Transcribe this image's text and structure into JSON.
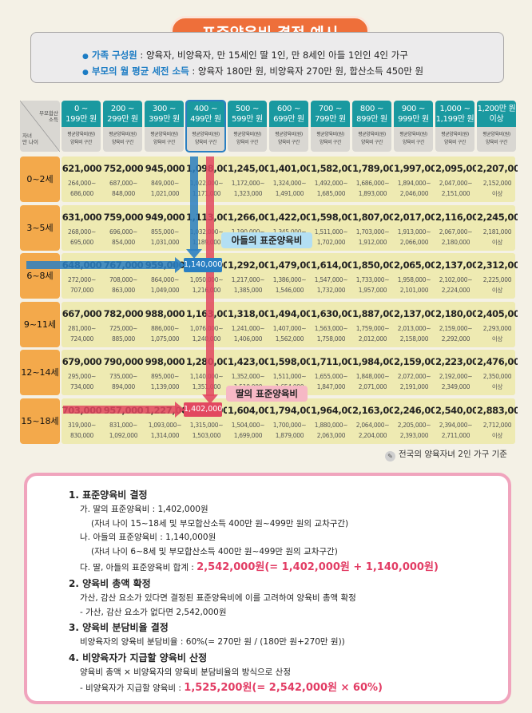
{
  "title": "표준양육비 결정 예시",
  "info": {
    "family_label": "가족 구성원",
    "family_value": ": 양육자, 비양육자, 만 15세인 딸 1인, 만 8세인 아들 1인인 4인 가구",
    "income_label": "부모의 월 평균 세전 소득",
    "income_value": ": 양육자 180만 원, 비양육자 270만 원, 합산소득 450만 원"
  },
  "corner": {
    "top": "부모합산\n소득",
    "bottom": "자녀\n만 나이"
  },
  "columns": [
    {
      "top": "0 ~\n199만 원",
      "sub": "평균양육비(원)\n양육비 구간"
    },
    {
      "top": "200 ~\n299만 원",
      "sub": "평균양육비(원)\n양육비 구간"
    },
    {
      "top": "300 ~\n399만 원",
      "sub": "평균양육비(원)\n양육비 구간"
    },
    {
      "top": "400 ~\n499만 원",
      "sub": "평균양육비(원)\n양육비 구간"
    },
    {
      "top": "500 ~\n599만 원",
      "sub": "평균양육비(원)\n양육비 구간"
    },
    {
      "top": "600 ~\n699만 원",
      "sub": "평균양육비(원)\n양육비 구간"
    },
    {
      "top": "700 ~\n799만 원",
      "sub": "평균양육비(원)\n양육비 구간"
    },
    {
      "top": "800 ~\n899만 원",
      "sub": "평균양육비(원)\n양육비 구간"
    },
    {
      "top": "900 ~\n999만 원",
      "sub": "평균양육비(원)\n양육비 구간"
    },
    {
      "top": "1,000 ~\n1,199만 원",
      "sub": "평균양육비(원)\n양육비 구간"
    },
    {
      "top": "1,200만 원\n이상",
      "sub": "평균양육비(원)\n양육비 구간"
    }
  ],
  "rows": [
    {
      "age": "0~2세",
      "cells": [
        [
          "621,000",
          "264,000~",
          "686,000"
        ],
        [
          "752,000",
          "687,000~",
          "848,000"
        ],
        [
          "945,000",
          "849,000~",
          "1,021,000"
        ],
        [
          "1,098,000",
          "1,022,000~",
          "1,171,000"
        ],
        [
          "1,245,000",
          "1,172,000~",
          "1,323,000"
        ],
        [
          "1,401,000",
          "1,324,000~",
          "1,491,000"
        ],
        [
          "1,582,000",
          "1,492,000~",
          "1,685,000"
        ],
        [
          "1,789,000",
          "1,686,000~",
          "1,893,000"
        ],
        [
          "1,997,000",
          "1,894,000~",
          "2,046,000"
        ],
        [
          "2,095,000",
          "2,047,000~",
          "2,151,000"
        ],
        [
          "2,207,000",
          "2,152,000",
          "이상"
        ]
      ]
    },
    {
      "age": "3~5세",
      "cells": [
        [
          "631,000",
          "268,000~",
          "695,000"
        ],
        [
          "759,000",
          "696,000~",
          "854,000"
        ],
        [
          "949,000",
          "855,000~",
          "1,031,000"
        ],
        [
          "1,113,000",
          "1,032,000~",
          "1,189,000"
        ],
        [
          "1,266,000",
          "1,190,000~",
          "1,344,000"
        ],
        [
          "1,422,000",
          "1,345,000~",
          "1,510,000"
        ],
        [
          "1,598,000",
          "1,511,000~",
          "1,702,000"
        ],
        [
          "1,807,000",
          "1,703,000~",
          "1,912,000"
        ],
        [
          "2,017,000",
          "1,913,000~",
          "2,066,000"
        ],
        [
          "2,116,000",
          "2,067,000~",
          "2,180,000"
        ],
        [
          "2,245,000",
          "2,181,000",
          "이상"
        ]
      ]
    },
    {
      "age": "6~8세",
      "cells": [
        [
          "648,000",
          "272,000~",
          "707,000"
        ],
        [
          "767,000",
          "708,000~",
          "863,000"
        ],
        [
          "959,000",
          "864,000~",
          "1,049,000"
        ],
        [
          "1,140,000",
          "1,050,000~",
          "1,216,000"
        ],
        [
          "1,292,000",
          "1,217,000~",
          "1,385,000"
        ],
        [
          "1,479,000",
          "1,386,000~",
          "1,546,000"
        ],
        [
          "1,614,000",
          "1,547,000~",
          "1,732,000"
        ],
        [
          "1,850,000",
          "1,733,000~",
          "1,957,000"
        ],
        [
          "2,065,000",
          "1,958,000~",
          "2,101,000"
        ],
        [
          "2,137,000",
          "2,102,000~",
          "2,224,000"
        ],
        [
          "2,312,000",
          "2,225,000",
          "이상"
        ]
      ]
    },
    {
      "age": "9~11세",
      "cells": [
        [
          "667,000",
          "281,000~",
          "724,000"
        ],
        [
          "782,000",
          "725,000~",
          "885,000"
        ],
        [
          "988,000",
          "886,000~",
          "1,075,000"
        ],
        [
          "1,163,000",
          "1,076,000~",
          "1,240,000"
        ],
        [
          "1,318,000",
          "1,241,000~",
          "1,406,000"
        ],
        [
          "1,494,000",
          "1,407,000~",
          "1,562,000"
        ],
        [
          "1,630,000",
          "1,563,000~",
          "1,758,000"
        ],
        [
          "1,887,000",
          "1,759,000~",
          "2,012,000"
        ],
        [
          "2,137,000",
          "2,013,000~",
          "2,158,000"
        ],
        [
          "2,180,000",
          "2,159,000~",
          "2,292,000"
        ],
        [
          "2,405,000",
          "2,293,000",
          "이상"
        ]
      ]
    },
    {
      "age": "12~14세",
      "cells": [
        [
          "679,000",
          "295,000~",
          "734,000"
        ],
        [
          "790,000",
          "735,000~",
          "894,000"
        ],
        [
          "998,000",
          "895,000~",
          "1,139,000"
        ],
        [
          "1,280,000",
          "1,140,000~",
          "1,351,000"
        ],
        [
          "1,423,000",
          "1,352,000~",
          "1,510,000"
        ],
        [
          "1,598,000",
          "1,511,000~",
          "1,654,000"
        ],
        [
          "1,711,000",
          "1,655,000~",
          "1,847,000"
        ],
        [
          "1,984,000",
          "1,848,000~",
          "2,071,000"
        ],
        [
          "2,159,000",
          "2,072,000~",
          "2,191,000"
        ],
        [
          "2,223,000",
          "2,192,000~",
          "2,349,000"
        ],
        [
          "2,476,000",
          "2,350,000",
          "이상"
        ]
      ]
    },
    {
      "age": "15~18세",
      "cells": [
        [
          "703,000",
          "319,000~",
          "830,000"
        ],
        [
          "957,000",
          "831,000~",
          "1,092,000"
        ],
        [
          "1,227,000",
          "1,093,000~",
          "1,314,000"
        ],
        [
          "1,402,000",
          "1,315,000~",
          "1,503,000"
        ],
        [
          "1,604,000",
          "1,504,000~",
          "1,699,000"
        ],
        [
          "1,794,000",
          "1,700,000~",
          "1,879,000"
        ],
        [
          "1,964,000",
          "1,880,000~",
          "2,063,000"
        ],
        [
          "2,163,000",
          "2,064,000~",
          "2,204,000"
        ],
        [
          "2,246,000",
          "2,205,000~",
          "2,393,000"
        ],
        [
          "2,540,000",
          "2,394,000~",
          "2,711,000"
        ],
        [
          "2,883,000",
          "2,712,000",
          "이상"
        ]
      ]
    }
  ],
  "highlight": {
    "son_value": "1,140,000",
    "son_label": "아들의 표준양육비",
    "dau_value": "1,402,000",
    "dau_label": "딸의 표준양육비",
    "son_color": "#2a7fc2",
    "dau_color": "#e24860"
  },
  "basis": "전국의 양육자녀 2인 가구 기준",
  "steps": {
    "s1": "1.  표준양육비 결정",
    "s1a": "가. 딸의 표준양육비 : 1,402,000원",
    "s1a_note": "(자녀 나이 15~18세 및 부모합산소득 400만 원~499만 원의 교차구간)",
    "s1b": "나. 아들의 표준양육비 : 1,140,000원",
    "s1b_note": "(자녀 나이 6~8세 및 부모합산소득 400만 원~499만 원의 교차구간)",
    "s1c": "다. 딸, 아들의 표준양육비 합계 : ",
    "s1c_value": "2,542,000원(= 1,402,000원 + 1,140,000원)",
    "s2": "2. 양육비 총액 확정",
    "s2a": "가산, 감산 요소가 있다면 결정된 표준양육비에 이를 고려하여 양육비 총액 확정",
    "s2b": "- 가산, 감산 요소가 없다면 2,542,000원",
    "s3": "3. 양육비 분담비율 결정",
    "s3a": "비양육자의 양육비 분담비율 : 60%(= 270만 원 / (180만 원+270만 원))",
    "s4": "4. 비양육자가 지급할 양육비 산정",
    "s4a": "양육비 총액 × 비양육자의 양육비 분담비율의 방식으로 산정",
    "s4b": "- 비양육자가 지급할 양육비 : ",
    "s4b_value": "1,525,200원(= 2,542,000원 × 60%)"
  }
}
